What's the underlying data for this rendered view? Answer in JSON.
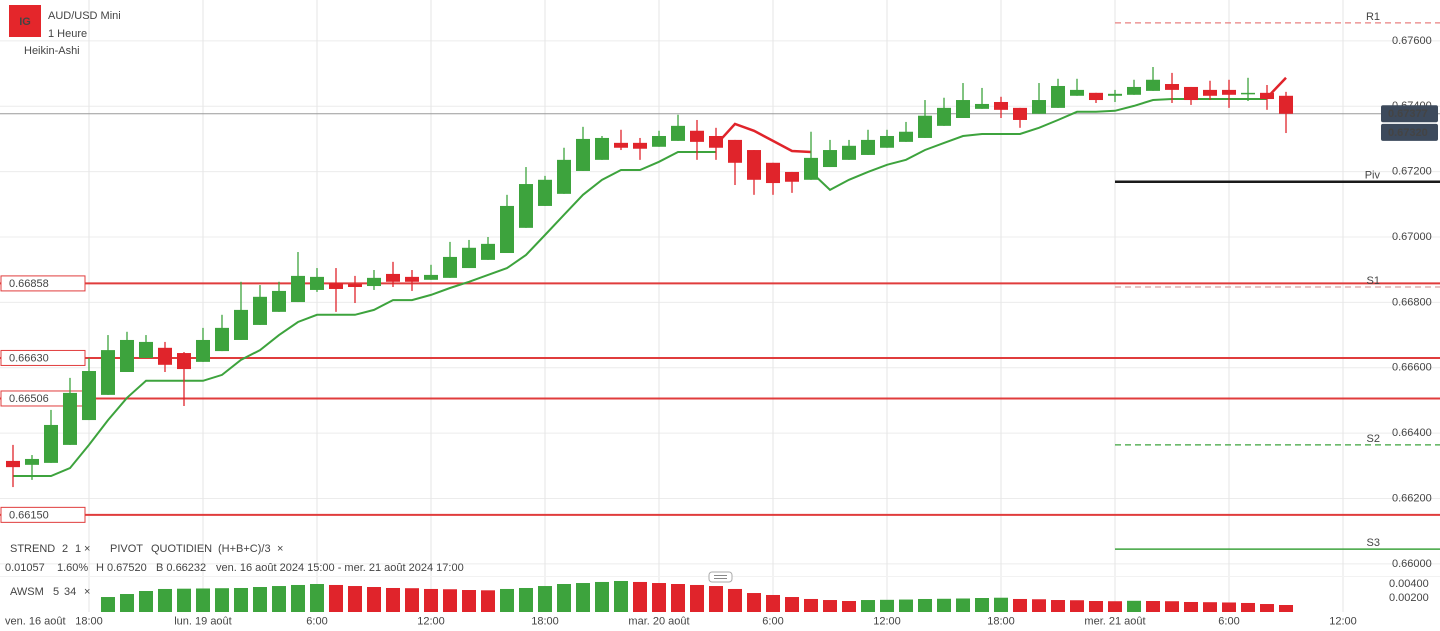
{
  "header": {
    "logo": "IG",
    "title": "AUD/USD Mini",
    "interval": "1 Heure",
    "chart_style": "Heikin-Ashi"
  },
  "indicators": {
    "strend": {
      "name": "STREND",
      "params": [
        "2",
        "1"
      ]
    },
    "pivot": {
      "name": "PIVOT",
      "params": [
        "QUOTIDIEN",
        "(H+B+C)/3"
      ]
    },
    "awsm": {
      "name": "AWSM",
      "params": [
        "5",
        "34"
      ]
    },
    "close_icon": "×"
  },
  "stats": {
    "change": "0.01057",
    "change_pct": "1.60%",
    "high": "H 0.67520",
    "low": "B 0.66232",
    "range": "ven. 16 août 2024 15:00 - mer. 21 août 2024 17:00"
  },
  "chart_data": [
    {
      "type": "candlestick",
      "open": [
        0.66315,
        0.66303,
        0.66309,
        0.66364,
        0.6644,
        0.66517,
        0.66587,
        0.6663,
        0.66661,
        0.66645,
        0.66618,
        0.66651,
        0.66685,
        0.66731,
        0.66771,
        0.66801,
        0.66838,
        0.66859,
        0.66856,
        0.6685,
        0.66887,
        0.66878,
        0.66869,
        0.66875,
        0.66905,
        0.6693,
        0.66951,
        0.67028,
        0.67095,
        0.67132,
        0.67202,
        0.67236,
        0.67288,
        0.67288,
        0.67276,
        0.67294,
        0.67325,
        0.67309,
        0.67297,
        0.67266,
        0.67227,
        0.67199,
        0.67175,
        0.67214,
        0.67236,
        0.67251,
        0.67273,
        0.67291,
        0.67303,
        0.6734,
        0.67364,
        0.67392,
        0.67413,
        0.67395,
        0.67377,
        0.67395,
        0.67432,
        0.67441,
        0.67432,
        0.67435,
        0.67447,
        0.67468,
        0.67459,
        0.6745,
        0.6745,
        0.67438,
        0.67441,
        0.67432
      ],
      "high": [
        0.66364,
        0.66333,
        0.66471,
        0.66569,
        0.6663,
        0.667,
        0.6671,
        0.667,
        0.66679,
        0.66648,
        0.66722,
        0.66762,
        0.66863,
        0.66853,
        0.66863,
        0.66954,
        0.66905,
        0.66905,
        0.66881,
        0.66899,
        0.66924,
        0.66899,
        0.66915,
        0.66985,
        0.66991,
        0.67,
        0.67129,
        0.67214,
        0.67187,
        0.67273,
        0.67337,
        0.67309,
        0.67328,
        0.67303,
        0.67325,
        0.67374,
        0.67358,
        0.67334,
        0.67297,
        0.67266,
        0.67227,
        0.67199,
        0.67322,
        0.67297,
        0.67297,
        0.67328,
        0.67328,
        0.67352,
        0.67419,
        0.67426,
        0.67471,
        0.67456,
        0.67429,
        0.67395,
        0.67471,
        0.67484,
        0.67484,
        0.67441,
        0.6745,
        0.67481,
        0.6752,
        0.67502,
        0.67459,
        0.67478,
        0.67481,
        0.67487,
        0.67465,
        0.67444
      ],
      "low": [
        0.66235,
        0.66257,
        0.66309,
        0.66364,
        0.6644,
        0.66517,
        0.66587,
        0.6663,
        0.66587,
        0.66483,
        0.66618,
        0.66651,
        0.66685,
        0.66731,
        0.66771,
        0.66801,
        0.66832,
        0.66771,
        0.66798,
        0.66838,
        0.66847,
        0.66835,
        0.66869,
        0.66875,
        0.66905,
        0.6693,
        0.66951,
        0.67028,
        0.67095,
        0.67132,
        0.67202,
        0.67236,
        0.67266,
        0.67236,
        0.67276,
        0.67294,
        0.67236,
        0.67236,
        0.67159,
        0.67129,
        0.67129,
        0.67135,
        0.67175,
        0.67214,
        0.67236,
        0.67251,
        0.67273,
        0.67291,
        0.67303,
        0.6734,
        0.67364,
        0.67392,
        0.67364,
        0.67334,
        0.67377,
        0.67395,
        0.67432,
        0.6741,
        0.67413,
        0.67435,
        0.67447,
        0.6741,
        0.67404,
        0.67419,
        0.67395,
        0.67416,
        0.67389,
        0.67318
      ],
      "close": [
        0.66296,
        0.66321,
        0.66425,
        0.66523,
        0.6659,
        0.66654,
        0.66685,
        0.66679,
        0.66609,
        0.66596,
        0.66685,
        0.66722,
        0.66777,
        0.66817,
        0.66835,
        0.66881,
        0.66878,
        0.66841,
        0.66847,
        0.66875,
        0.66863,
        0.66863,
        0.66884,
        0.66939,
        0.66967,
        0.66979,
        0.67095,
        0.67162,
        0.67175,
        0.67236,
        0.673,
        0.67303,
        0.67273,
        0.6727,
        0.67309,
        0.6734,
        0.67291,
        0.67273,
        0.67227,
        0.67175,
        0.67165,
        0.67169,
        0.67242,
        0.67266,
        0.67279,
        0.67297,
        0.67309,
        0.67322,
        0.67371,
        0.67395,
        0.67419,
        0.67407,
        0.67389,
        0.67358,
        0.67419,
        0.67462,
        0.6745,
        0.67419,
        0.67438,
        0.67459,
        0.67481,
        0.6745,
        0.67419,
        0.67432,
        0.67435,
        0.67441,
        0.67422,
        0.67377
      ],
      "up_color": "#3da33d",
      "down_color": "#e0242b",
      "xlim": [
        -0.684,
        71.947
      ],
      "x_start_label": "ven. 16 août",
      "xticks": [
        {
          "value": 4,
          "label": "18:00"
        },
        {
          "value": 10,
          "label": "lun. 19 août"
        },
        {
          "value": 16,
          "label": "6:00"
        },
        {
          "value": 22,
          "label": "12:00"
        },
        {
          "value": 28,
          "label": "18:00"
        },
        {
          "value": 34,
          "label": "mar. 20 août"
        },
        {
          "value": 40,
          "label": "6:00"
        },
        {
          "value": 46,
          "label": "12:00"
        },
        {
          "value": 52,
          "label": "18:00"
        },
        {
          "value": 58,
          "label": "mer. 21 août"
        },
        {
          "value": 64,
          "label": "6:00"
        },
        {
          "value": 70,
          "label": "12:00"
        }
      ],
      "ylim": [
        0.65966,
        0.67725
      ],
      "yticks": [
        {
          "value": 0.676,
          "label": "0.67600"
        },
        {
          "value": 0.674,
          "label": "0.67400"
        },
        {
          "value": 0.672,
          "label": "0.67200"
        },
        {
          "value": 0.67,
          "label": "0.67000"
        },
        {
          "value": 0.668,
          "label": "0.66800"
        },
        {
          "value": 0.666,
          "label": "0.66600"
        },
        {
          "value": 0.664,
          "label": "0.66400"
        },
        {
          "value": 0.662,
          "label": "0.66200"
        },
        {
          "value": 0.66,
          "label": "0.66000"
        }
      ],
      "grid": true,
      "overlays": [
        {
          "color": "#3da33d",
          "values": [
            0.66269,
            0.66269,
            0.66269,
            0.66293,
            0.66364,
            0.6644,
            0.66508,
            0.6656,
            0.6656,
            0.6656,
            0.6656,
            0.66578,
            0.66624,
            0.66654,
            0.667,
            0.6674,
            0.66762,
            0.66762,
            0.66762,
            0.66777,
            0.66807,
            0.66807,
            0.66823,
            0.66844,
            0.66863,
            0.66884,
            0.66905,
            0.66945,
            0.67006,
            0.67068,
            0.67129,
            0.67175,
            0.67205,
            0.67205,
            0.6723,
            0.6726,
            0.6726,
            0.6726,
            null,
            null,
            null,
            null,
            0.67199,
            0.67144,
            0.67175,
            0.67199,
            0.67221,
            0.67236,
            0.67266,
            0.67288,
            0.67309,
            0.67315,
            0.67315,
            0.67315,
            0.67334,
            0.67358,
            0.67383,
            0.67383,
            0.67386,
            0.67401,
            0.67419,
            0.67422,
            0.67422,
            0.67422,
            0.67422,
            0.67422,
            0.67422,
            null
          ]
        },
        {
          "color": "#e0242b",
          "values": [
            null,
            null,
            null,
            null,
            null,
            null,
            null,
            null,
            null,
            null,
            null,
            null,
            null,
            null,
            null,
            null,
            null,
            null,
            null,
            null,
            null,
            null,
            null,
            null,
            null,
            null,
            null,
            null,
            null,
            null,
            null,
            null,
            null,
            null,
            null,
            null,
            null,
            0.67282,
            0.67346,
            0.67325,
            0.67294,
            0.67263,
            0.6726,
            null,
            null,
            null,
            null,
            null,
            null,
            null,
            null,
            null,
            null,
            null,
            null,
            null,
            null,
            null,
            null,
            null,
            null,
            null,
            null,
            null,
            null,
            null,
            0.67426,
            0.67487
          ]
        }
      ],
      "level_color": "#e03c3c",
      "levels": [
        {
          "value": 0.66858
        },
        {
          "value": 0.6663,
          "label": "0.66630"
        },
        {
          "value": 0.66506
        },
        {
          "value": 0.6615,
          "label": "0.66150"
        }
      ],
      "pivots": [
        {
          "label": "R1",
          "value": 0.67655,
          "color": "#e88080",
          "label_color": "#e06060",
          "dashed": true
        },
        {
          "label": "Piv",
          "value": 0.67169,
          "color": "#1a1a1a",
          "label_color": "#333333",
          "dashed": false
        },
        {
          "label": "S1",
          "value": 0.66847,
          "color": "#d9a0a0",
          "label_color": "#5aa85a",
          "dashed": true
        },
        {
          "label": "S2",
          "value": 0.66364,
          "color": "#3da33d",
          "label_color": "#3da33d",
          "dashed": true
        },
        {
          "label": "S3",
          "value": 0.66045,
          "color": "#3da33d",
          "label_color": "#3da33d",
          "dashed": false
        }
      ],
      "last_price": {
        "value": 0.67377,
        "color": "#9a9a9a"
      },
      "price_badges": [
        {
          "value": 0.67377,
          "color": "#3d4a5c"
        },
        {
          "value": 0.6732,
          "label": "0.67320",
          "color": "#3d4a5c"
        }
      ]
    },
    {
      "type": "bar",
      "values": [
        null,
        null,
        null,
        null,
        null,
        0.00214,
        0.00257,
        0.003,
        0.00329,
        0.00333,
        0.00336,
        0.0034,
        0.00343,
        0.00357,
        0.00371,
        0.00386,
        0.004,
        0.00386,
        0.00371,
        0.00357,
        0.00343,
        0.0034,
        0.00329,
        0.00325,
        0.00314,
        0.0031,
        0.00329,
        0.00343,
        0.00371,
        0.004,
        0.00414,
        0.00429,
        0.00443,
        0.00429,
        0.00414,
        0.004,
        0.00386,
        0.00371,
        0.00329,
        0.00271,
        0.00243,
        0.00214,
        0.00186,
        0.00171,
        0.00157,
        0.00171,
        0.00174,
        0.00178,
        0.00186,
        0.00189,
        0.00193,
        0.002,
        0.00204,
        0.00186,
        0.00182,
        0.00171,
        0.00168,
        0.00157,
        0.00154,
        0.0016,
        0.00157,
        0.00154,
        0.00143,
        0.0014,
        0.00136,
        0.00129,
        0.00114,
        0.001
      ],
      "up_color": "#3da33d",
      "down_color": "#e0242b",
      "ylim": [
        0,
        0.005
      ],
      "yticks": [
        {
          "value": 0.004,
          "label": "0.00400"
        },
        {
          "value": 0.002,
          "label": "0.00200"
        }
      ]
    }
  ]
}
